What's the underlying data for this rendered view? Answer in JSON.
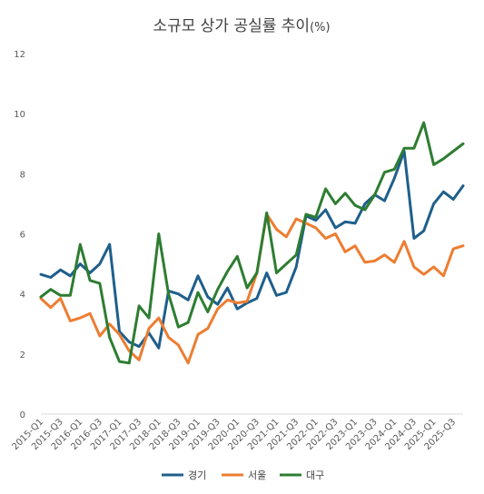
{
  "chart_data": {
    "type": "line",
    "title": "소규모 상가 공실률 추이",
    "title_unit": "(%)",
    "xlabel": "",
    "ylabel": "",
    "ylim": [
      0,
      12
    ],
    "yticks": [
      0,
      2,
      4,
      6,
      8,
      10,
      12
    ],
    "grid": false,
    "legend_position": "bottom",
    "categories": [
      "2015-Q1",
      "2015-Q2",
      "2015-Q3",
      "2015-Q4",
      "2016-Q1",
      "2016-Q2",
      "2016-Q3",
      "2016-Q4",
      "2017-Q1",
      "2017-Q2",
      "2017-Q3",
      "2017-Q4",
      "2018-Q1",
      "2018-Q2",
      "2018-Q3",
      "2018-Q4",
      "2019-Q1",
      "2019-Q2",
      "2019-Q3",
      "2019-Q4",
      "2020-Q1",
      "2020-Q2",
      "2020-Q3",
      "2020-Q4",
      "2021-Q1",
      "2021-Q2",
      "2021-Q3",
      "2021-Q4",
      "2022-Q1",
      "2022-Q2",
      "2022-Q3",
      "2022-Q4",
      "2023-Q1",
      "2023-Q2",
      "2023-Q3",
      "2023-Q4",
      "2024-Q1",
      "2024-Q2",
      "2024-Q3",
      "2024-Q4",
      "2025-Q1",
      "2025-Q2",
      "2025-Q3",
      "2025-Q4"
    ],
    "tick_labels": [
      "2015-Q1",
      "2015-Q3",
      "2016-Q1",
      "2016-Q3",
      "2017-Q1",
      "2017-Q3",
      "2018-Q1",
      "2018-Q3",
      "2019-Q1",
      "2019-Q3",
      "2020-Q1",
      "2020-Q3",
      "2021-Q1",
      "2021-Q3",
      "2022-Q1",
      "2022-Q3",
      "2023-Q1",
      "2023-Q3",
      "2024-Q1",
      "2024-Q3",
      "2025-Q1",
      "2025-Q3"
    ],
    "series": [
      {
        "name": "경기",
        "color": "#1f5f8b",
        "values": [
          4.65,
          4.55,
          4.8,
          4.6,
          5.0,
          4.7,
          5.0,
          5.65,
          2.75,
          2.4,
          2.25,
          2.7,
          2.2,
          4.1,
          4.0,
          3.8,
          4.6,
          3.9,
          3.65,
          4.2,
          3.5,
          3.7,
          3.85,
          4.7,
          3.95,
          4.05,
          4.9,
          6.6,
          6.45,
          6.8,
          6.2,
          6.4,
          6.35,
          7.0,
          7.3,
          7.1,
          7.85,
          8.75,
          5.85,
          6.1,
          7.0,
          7.4,
          7.15,
          7.6
        ]
      },
      {
        "name": "서울",
        "color": "#ed7d31",
        "values": [
          3.85,
          3.55,
          3.85,
          3.1,
          3.2,
          3.35,
          2.6,
          3.0,
          2.65,
          2.1,
          1.8,
          2.85,
          3.2,
          2.55,
          2.3,
          1.7,
          2.65,
          2.85,
          3.5,
          3.8,
          3.7,
          3.75,
          4.7,
          6.65,
          6.15,
          5.9,
          6.5,
          6.35,
          6.2,
          5.85,
          6.0,
          5.4,
          5.6,
          5.05,
          5.1,
          5.3,
          5.05,
          5.75,
          4.9,
          4.65,
          4.9,
          4.6,
          5.5,
          5.6
        ]
      },
      {
        "name": "대구",
        "color": "#2e7d32",
        "values": [
          3.9,
          4.15,
          3.95,
          3.95,
          5.65,
          4.45,
          4.35,
          2.55,
          1.75,
          1.7,
          3.6,
          3.2,
          6.0,
          4.0,
          2.9,
          3.05,
          4.05,
          3.4,
          4.15,
          4.75,
          5.25,
          4.2,
          4.7,
          6.7,
          4.7,
          5.0,
          5.3,
          6.65,
          6.55,
          7.5,
          7.0,
          7.35,
          6.95,
          6.8,
          7.3,
          8.05,
          8.15,
          8.85,
          8.85,
          9.7,
          8.3,
          8.5,
          8.75,
          9.0
        ]
      }
    ]
  }
}
